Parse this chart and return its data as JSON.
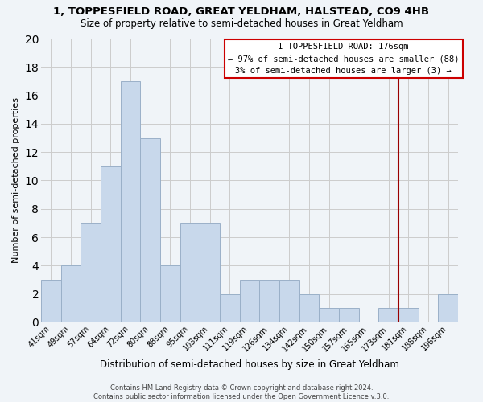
{
  "title": "1, TOPPESFIELD ROAD, GREAT YELDHAM, HALSTEAD, CO9 4HB",
  "subtitle": "Size of property relative to semi-detached houses in Great Yeldham",
  "xlabel": "Distribution of semi-detached houses by size in Great Yeldham",
  "ylabel": "Number of semi-detached properties",
  "bin_labels": [
    "41sqm",
    "49sqm",
    "57sqm",
    "64sqm",
    "72sqm",
    "80sqm",
    "88sqm",
    "95sqm",
    "103sqm",
    "111sqm",
    "119sqm",
    "126sqm",
    "134sqm",
    "142sqm",
    "150sqm",
    "157sqm",
    "165sqm",
    "173sqm",
    "181sqm",
    "188sqm",
    "196sqm"
  ],
  "bar_values": [
    3,
    4,
    7,
    11,
    17,
    13,
    4,
    7,
    7,
    2,
    3,
    3,
    3,
    2,
    1,
    1,
    0,
    1,
    1,
    0,
    2
  ],
  "bar_color": "#c8d8eb",
  "bar_edge_color": "#9ab0c8",
  "grid_color": "#cccccc",
  "vline_x_index": 17.5,
  "vline_color": "#990000",
  "box_text_line1": "1 TOPPESFIELD ROAD: 176sqm",
  "box_text_line2": "← 97% of semi-detached houses are smaller (88)",
  "box_text_line3": "3% of semi-detached houses are larger (3) →",
  "box_color": "white",
  "box_edge_color": "#cc0000",
  "footer_line1": "Contains HM Land Registry data © Crown copyright and database right 2024.",
  "footer_line2": "Contains public sector information licensed under the Open Government Licence v.3.0.",
  "ylim": [
    0,
    20
  ],
  "yticks": [
    0,
    2,
    4,
    6,
    8,
    10,
    12,
    14,
    16,
    18,
    20
  ],
  "background_color": "#f0f4f8"
}
